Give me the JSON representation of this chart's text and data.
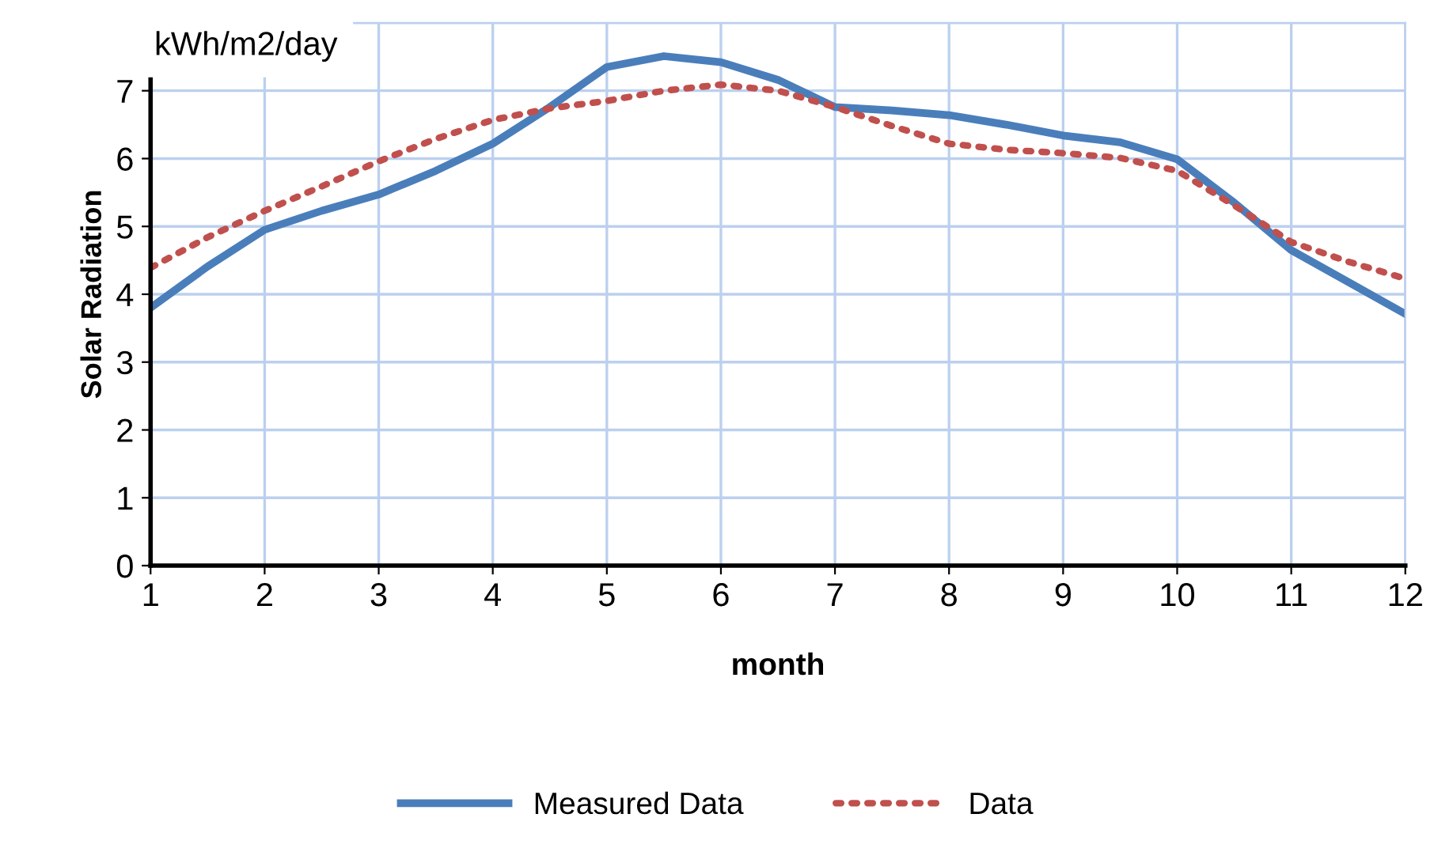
{
  "chart_data": {
    "type": "line",
    "xlabel": "month",
    "ylabel": "Solar Radiation",
    "annotations": [
      "kWh/m2/day"
    ],
    "x": [
      1,
      1.5,
      2,
      2.5,
      3,
      3.5,
      4,
      4.5,
      5,
      5.5,
      6,
      6.5,
      7,
      7.5,
      8,
      8.5,
      9,
      9.5,
      10,
      10.5,
      11,
      11.5,
      12
    ],
    "series": [
      {
        "name": "Measured Data",
        "color": "#4a7ebb",
        "line_style": "solid",
        "values": [
          3.8,
          4.41,
          4.95,
          5.23,
          5.47,
          5.82,
          6.22,
          6.76,
          7.35,
          7.51,
          7.42,
          7.16,
          6.76,
          6.71,
          6.64,
          6.5,
          6.34,
          6.24,
          5.99,
          5.35,
          4.65,
          4.18,
          3.71
        ]
      },
      {
        "name": "Data",
        "color": "#c0504d",
        "line_style": "dotted",
        "values": [
          4.39,
          4.84,
          5.23,
          5.59,
          5.96,
          6.29,
          6.57,
          6.74,
          6.85,
          7.0,
          7.09,
          7.0,
          6.76,
          6.48,
          6.22,
          6.13,
          6.08,
          6.01,
          5.82,
          5.31,
          4.77,
          4.48,
          4.23
        ]
      }
    ],
    "xlim": [
      1,
      12
    ],
    "xticks": [
      1,
      2,
      3,
      4,
      5,
      6,
      7,
      8,
      9,
      10,
      11,
      12
    ],
    "ylim": [
      0,
      8
    ],
    "yticks": [
      0,
      1,
      2,
      3,
      4,
      5,
      6,
      7,
      {
        "value": 8,
        "label": null
      }
    ],
    "grid": true,
    "legend": "bottom",
    "marker": "none"
  }
}
